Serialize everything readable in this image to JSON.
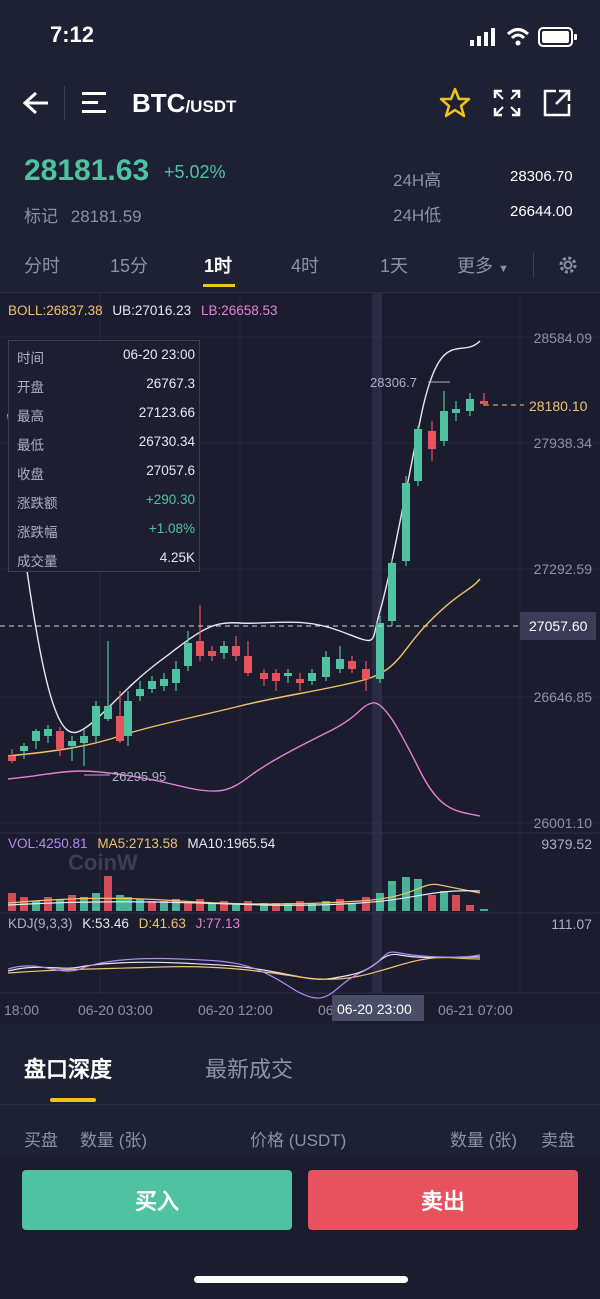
{
  "status": {
    "time": "7:12"
  },
  "header": {
    "base": "BTC",
    "quote": "/USDT"
  },
  "ticker": {
    "last": "28181.63",
    "change_pct": "+5.02%",
    "mark_label": "标记",
    "mark_price": "28181.59",
    "high_label": "24H高",
    "high": "28306.70",
    "low_label": "24H低",
    "low": "26644.00"
  },
  "intervals": [
    "分时",
    "15分",
    "1时",
    "4时",
    "1天",
    "更多"
  ],
  "indicators": {
    "boll": "BOLL:26837.38",
    "ub": "UB:27016.23",
    "lb": "LB:26658.53",
    "vol": "VOL:4250.81",
    "ma5": "MA5:2713.58",
    "ma10": "MA10:1965.54",
    "kdj": "KDJ(9,3,3)",
    "k": "K:53.46",
    "d": "D:41.63",
    "j": "J:77.13"
  },
  "price_axis": [
    "28584.09",
    "27938.34",
    "27292.59",
    "26646.85",
    "26001.10"
  ],
  "vol_axis_max": "9379.52",
  "kdj_axis_max": "111.07",
  "current_price_tag": "28180.10",
  "crosshair_price_tag": "27057.60",
  "chart_annotations": {
    "high": "28306.7",
    "low": "26295.95"
  },
  "time_axis": [
    "18:00",
    "06-20 03:00",
    "06-20 12:00",
    "06-20 23:00",
    "06-21 07:00"
  ],
  "crosshair_time": "06-20 23:00",
  "watermark": "CoinW",
  "info_panel": [
    {
      "k": "时间",
      "v": "06-20 23:00"
    },
    {
      "k": "开盘",
      "v": "26767.3"
    },
    {
      "k": "最高",
      "v": "27123.66"
    },
    {
      "k": "最低",
      "v": "26730.34"
    },
    {
      "k": "收盘",
      "v": "27057.6"
    },
    {
      "k": "涨跌额",
      "v": "+290.30"
    },
    {
      "k": "涨跌幅",
      "v": "+1.08%"
    },
    {
      "k": "成交量",
      "v": "4.25K"
    }
  ],
  "bottom_tabs": [
    "盘口深度",
    "最新成交"
  ],
  "book_headers": {
    "bid": "买盘",
    "bid_qty": "数量 (张)",
    "price": "价格 (USDT)",
    "ask_qty": "数量 (张)",
    "ask": "卖盘"
  },
  "buttons": {
    "buy": "买入",
    "sell": "卖出"
  },
  "colors": {
    "up": "#4fc3a1",
    "down": "#e8525d",
    "accent": "#f0c419",
    "bg": "#1e2033"
  }
}
